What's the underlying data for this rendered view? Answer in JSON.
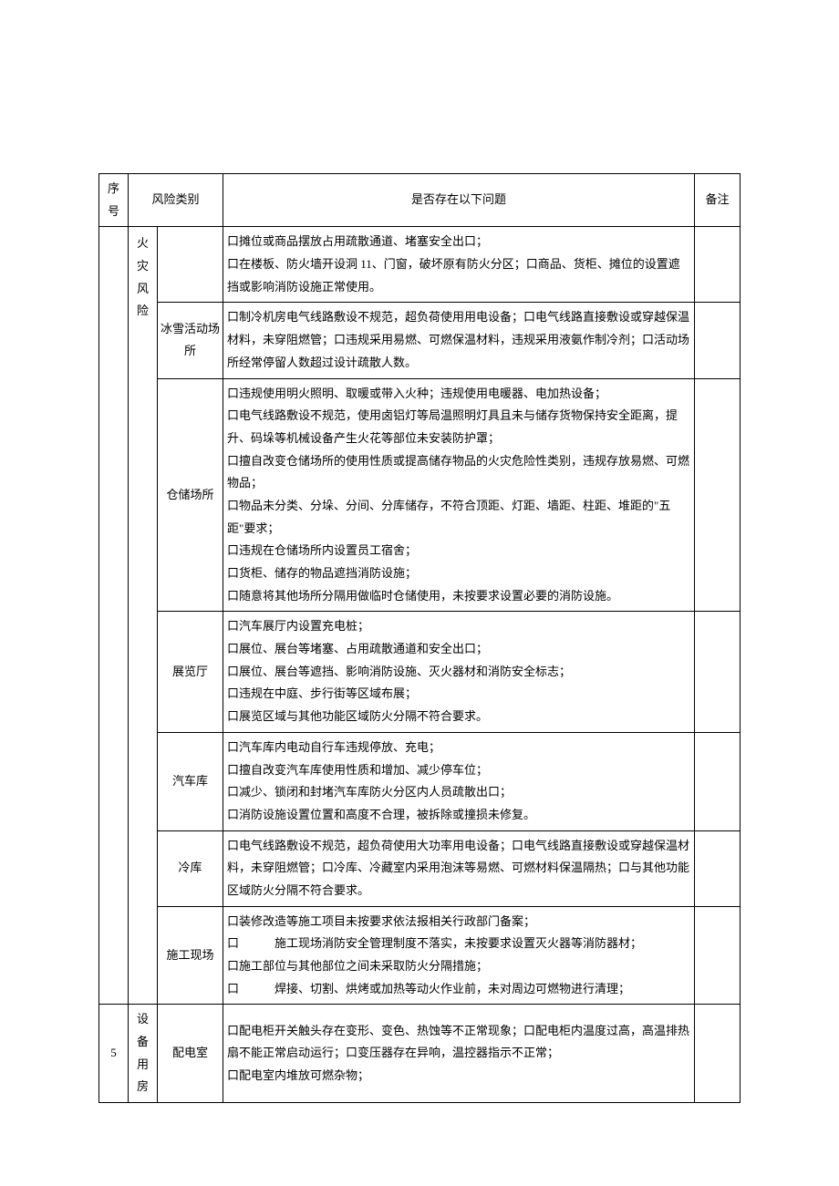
{
  "header": {
    "seq": "序号",
    "category": "风险类别",
    "issue": "是否存在以下问题",
    "note": "备注"
  },
  "colors": {
    "border": "#000000",
    "background": "#ffffff",
    "text": "#000000"
  },
  "typography": {
    "fontsize_body": 13,
    "line_height": 1.9,
    "font_family": "SimSun"
  },
  "rows": [
    {
      "seq": "",
      "cat1": "",
      "cat2": "",
      "lines": [
        "口摊位或商品摆放占用疏散通道、堵塞安全出口；",
        "口在楼板、防火墙开设洞 11、门窗，破坏原有防火分区；口商品、货柜、摊位的设置遮挡或影响消防设施正常使用。"
      ]
    },
    {
      "cat2": "冰雪活动场所",
      "lines": [
        "口制冷机房电气线路敷设不规范，超负荷使用用电设备；口电气线路直接敷设或穿越保温材料，未穿阻燃管；口违规采用易燃、可燃保温材料，违规采用液氨作制冷剂；口活动场所经常停留人数超过设计疏散人数。"
      ]
    },
    {
      "cat2": "仓储场所",
      "lines": [
        "口违规使用明火照明、取暖或带入火种；违规使用电暖器、电加热设备；",
        "口电气线路敷设不规范，使用卤铝灯等局温照明灯具且未与储存货物保持安全距离，提升、码垛等机械设备产生火花等部位未安装防护罩；",
        "口擅自改变仓储场所的使用性质或提高储存物品的火灾危险性类别，违规存放易燃、可燃物品；",
        "口物品未分类、分垛、分间、分库储存，不符合顶距、灯距、墙距、柱距、堆距的\"五距\"要求；",
        "口违规在仓储场所内设置员工宿舍；",
        "口货柜、储存的物品遮挡消防设施；",
        "口随意将其他场所分隔用做临时仓储使用，未按要求设置必要的消防设施。"
      ]
    },
    {
      "cat2": "展览厅",
      "lines": [
        "口汽车展厅内设置充电桩；",
        "口展位、展台等堵塞、占用疏散通道和安全出口；",
        "口展位、展台等遮挡、影响消防设施、灭火器材和消防安全标志；",
        "口违规在中庭、步行街等区域布展；",
        "口展览区域与其他功能区域防火分隔不符合要求。"
      ]
    },
    {
      "cat2": "汽车库",
      "lines": [
        "口汽车库内电动自行车违规停放、充电；",
        "口擅自改变汽车库使用性质和增加、减少停车位；",
        "口减少、锁闭和封堵汽车库防火分区内人员疏散出口；",
        "口消防设施设置位置和高度不合理，被拆除或撞损未修复。"
      ]
    },
    {
      "cat2": "冷库",
      "lines": [
        "口电气线路敷设不规范，超负荷使用大功率用电设备；口电气线路直接敷设或穿越保温材料，未穿阻燃管；口冷库、冷藏室内采用泡沫等易燃、可燃材料保温隔热；口与其他功能区域防火分隔不符合要求。"
      ]
    },
    {
      "cat2": "施工现场",
      "lines": [
        "口装修改造等施工项目未按要求依法报相关行政部门备案；",
        "口　　　施工现场消防安全管理制度不落实，未按要求设置灭火器等消防器材；",
        "口施工部位与其他部位之间未采取防火分隔措施；",
        "口　　　焊接、切割、烘烤或加热等动火作业前，未对周边可燃物进行清理；"
      ]
    },
    {
      "seq": "5",
      "cat1": "设备用房",
      "cat2": "配电室",
      "lines": [
        "口配电柜开关触头存在变形、变色、热蚀等不正常现象；口配电柜内温度过高，高温排热扇不能正常启动运行；口变压器存在异响，温控器指示不正常；",
        "口配电室内堆放可燃杂物；"
      ]
    }
  ],
  "top_cat1": "火灾风险"
}
